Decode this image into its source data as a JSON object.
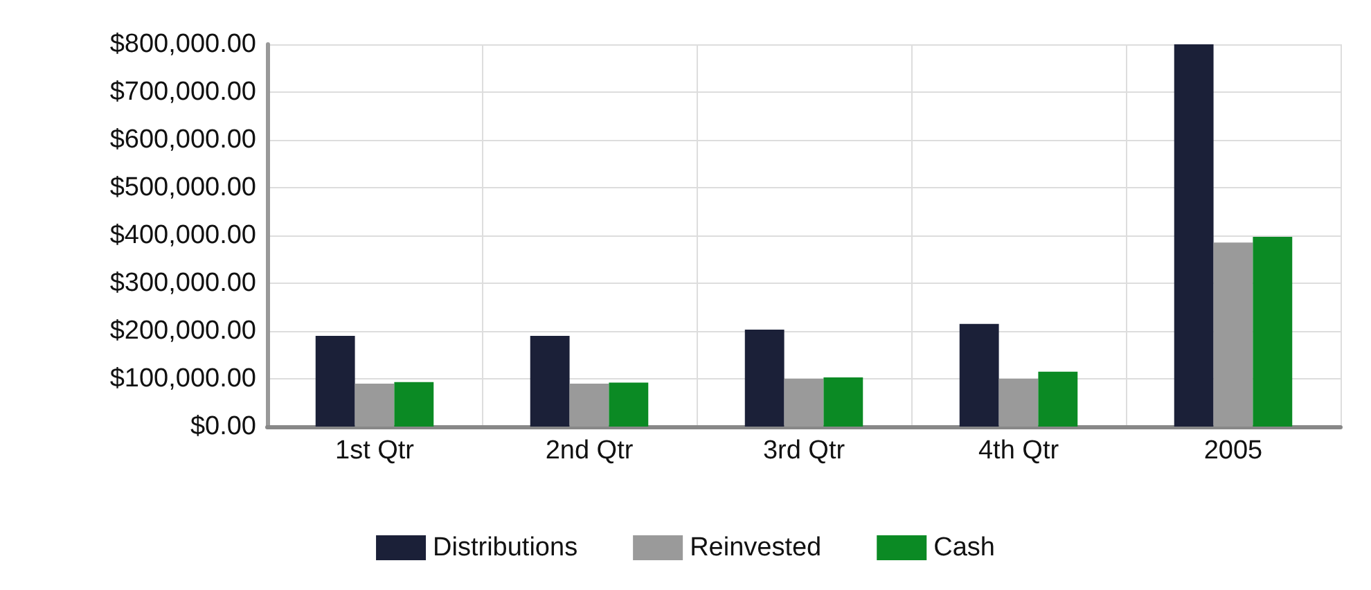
{
  "chart_data": {
    "type": "bar",
    "categories": [
      "1st Qtr",
      "2nd Qtr",
      "3rd Qtr",
      "4th Qtr",
      "2005"
    ],
    "series": [
      {
        "name": "Distributions",
        "color": "#1b2038",
        "values": [
          190000,
          190000,
          203000,
          215000,
          800000
        ]
      },
      {
        "name": "Reinvested",
        "color": "#9a9a9a",
        "values": [
          90000,
          90000,
          100000,
          100000,
          385000
        ]
      },
      {
        "name": "Cash",
        "color": "#0b8a24",
        "values": [
          93000,
          92000,
          103000,
          115000,
          397000
        ]
      }
    ],
    "ylim": [
      0,
      800000
    ],
    "yticks": [
      {
        "value": 0,
        "label": "$0.00"
      },
      {
        "value": 100000,
        "label": "$100,000.00"
      },
      {
        "value": 200000,
        "label": "$200,000.00"
      },
      {
        "value": 300000,
        "label": "$300,000.00"
      },
      {
        "value": 400000,
        "label": "$400,000.00"
      },
      {
        "value": 500000,
        "label": "$500,000.00"
      },
      {
        "value": 600000,
        "label": "$600,000.00"
      },
      {
        "value": 700000,
        "label": "$700,000.00"
      },
      {
        "value": 800000,
        "label": "$800,000.00"
      }
    ],
    "grid": true,
    "legend": "bottom"
  }
}
